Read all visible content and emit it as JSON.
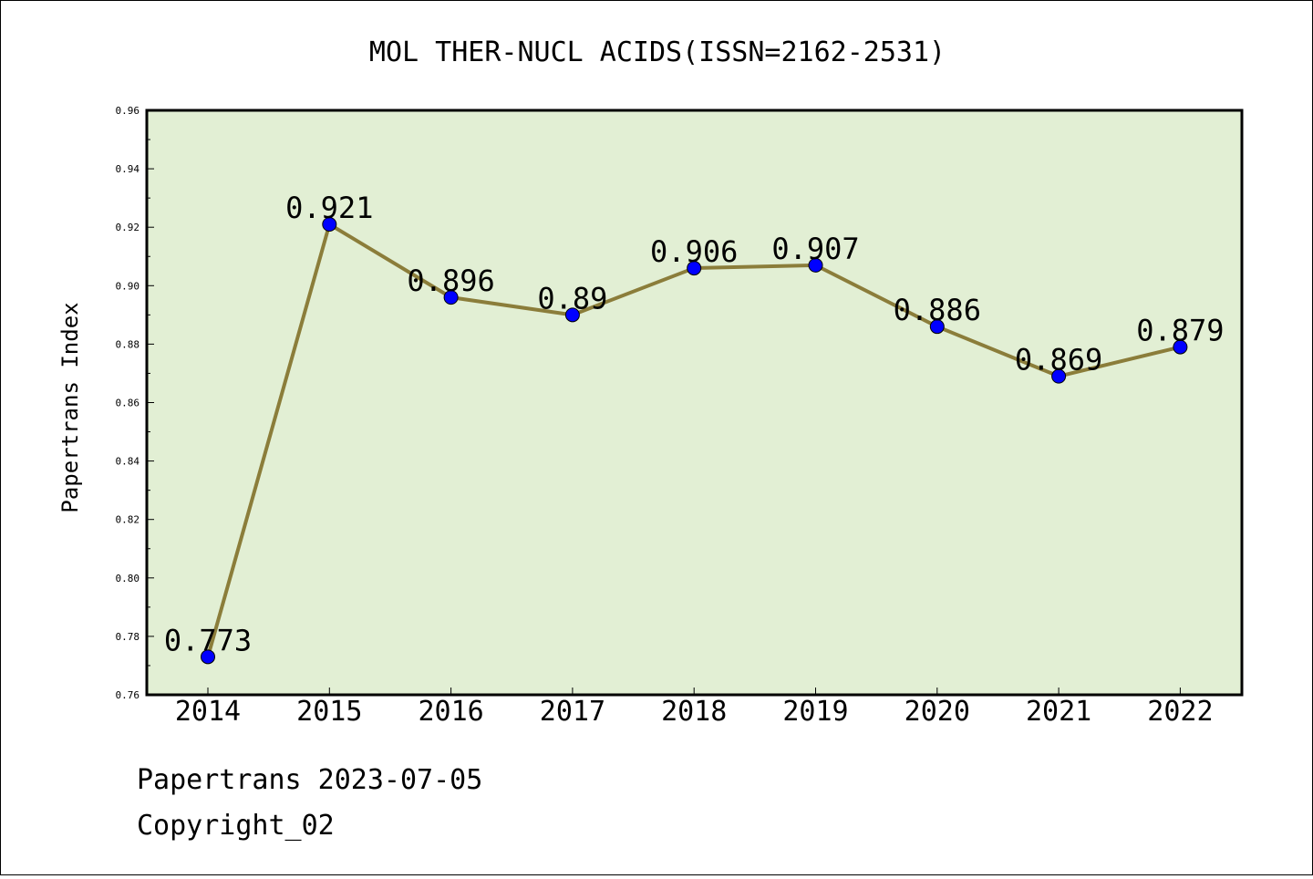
{
  "chart_data": {
    "type": "line",
    "title": "MOL THER-NUCL ACIDS(ISSN=2162-2531)",
    "xlabel": "",
    "ylabel": "Papertrans Index",
    "categories": [
      "2014",
      "2015",
      "2016",
      "2017",
      "2018",
      "2019",
      "2020",
      "2021",
      "2022"
    ],
    "series": [
      {
        "values": [
          0.773,
          0.921,
          0.896,
          0.89,
          0.906,
          0.907,
          0.886,
          0.869,
          0.879
        ],
        "labels": [
          "0.773",
          "0.921",
          "0.896",
          "0.89",
          "0.906",
          "0.907",
          "0.886",
          "0.869",
          "0.879"
        ]
      }
    ],
    "ylim": [
      0.76,
      0.96
    ],
    "yticks": [
      "0.76",
      "0.78",
      "0.80",
      "0.82",
      "0.84",
      "0.86",
      "0.88",
      "0.90",
      "0.92",
      "0.94",
      "0.96"
    ],
    "grid": false,
    "colors": {
      "plot_background": "#e2efd4",
      "line": "#8b7d3a",
      "marker": "#0000ff"
    }
  },
  "footer": {
    "line1": "Papertrans 2023-07-05",
    "line2": "Copyright_02"
  }
}
